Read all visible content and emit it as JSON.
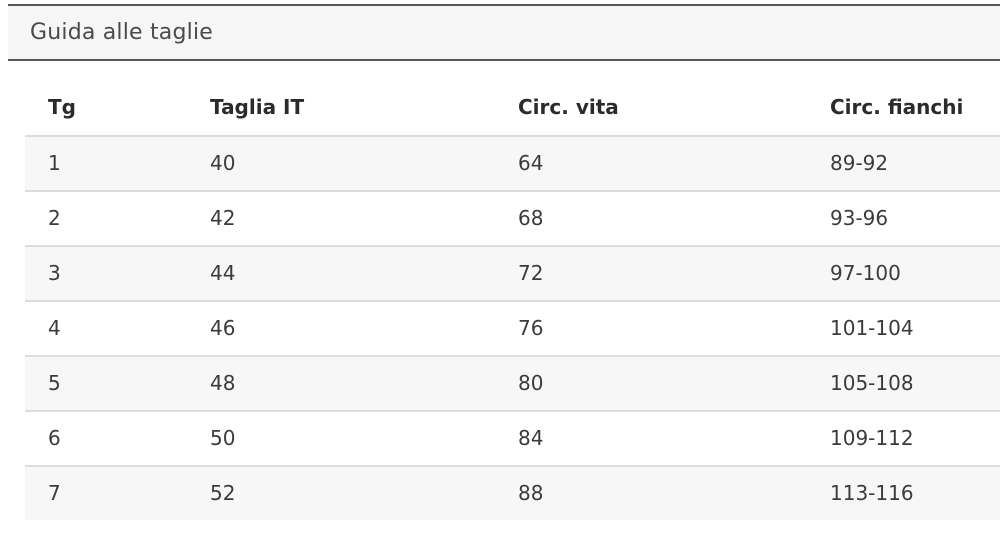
{
  "panel": {
    "title": "Guida alle taglie"
  },
  "table": {
    "columns": [
      "Tg",
      "Taglia IT",
      "Circ. vita",
      "Circ. fianchi"
    ],
    "rows": [
      [
        "1",
        "40",
        "64",
        "89-92"
      ],
      [
        "2",
        "42",
        "68",
        "93-96"
      ],
      [
        "3",
        "44",
        "72",
        "97-100"
      ],
      [
        "4",
        "46",
        "76",
        "101-104"
      ],
      [
        "5",
        "48",
        "80",
        "105-108"
      ],
      [
        "6",
        "50",
        "84",
        "109-112"
      ],
      [
        "7",
        "52",
        "88",
        "113-116"
      ]
    ]
  },
  "colors": {
    "header_bar_background": "#f6f6f6",
    "header_bar_border": "#58585a",
    "title_text": "#4a4a4a",
    "table_header_text": "#2b2b2b",
    "table_cell_text": "#3b3b3b",
    "row_stripe": "#f7f7f7",
    "row_border": "#dcdcdc"
  }
}
